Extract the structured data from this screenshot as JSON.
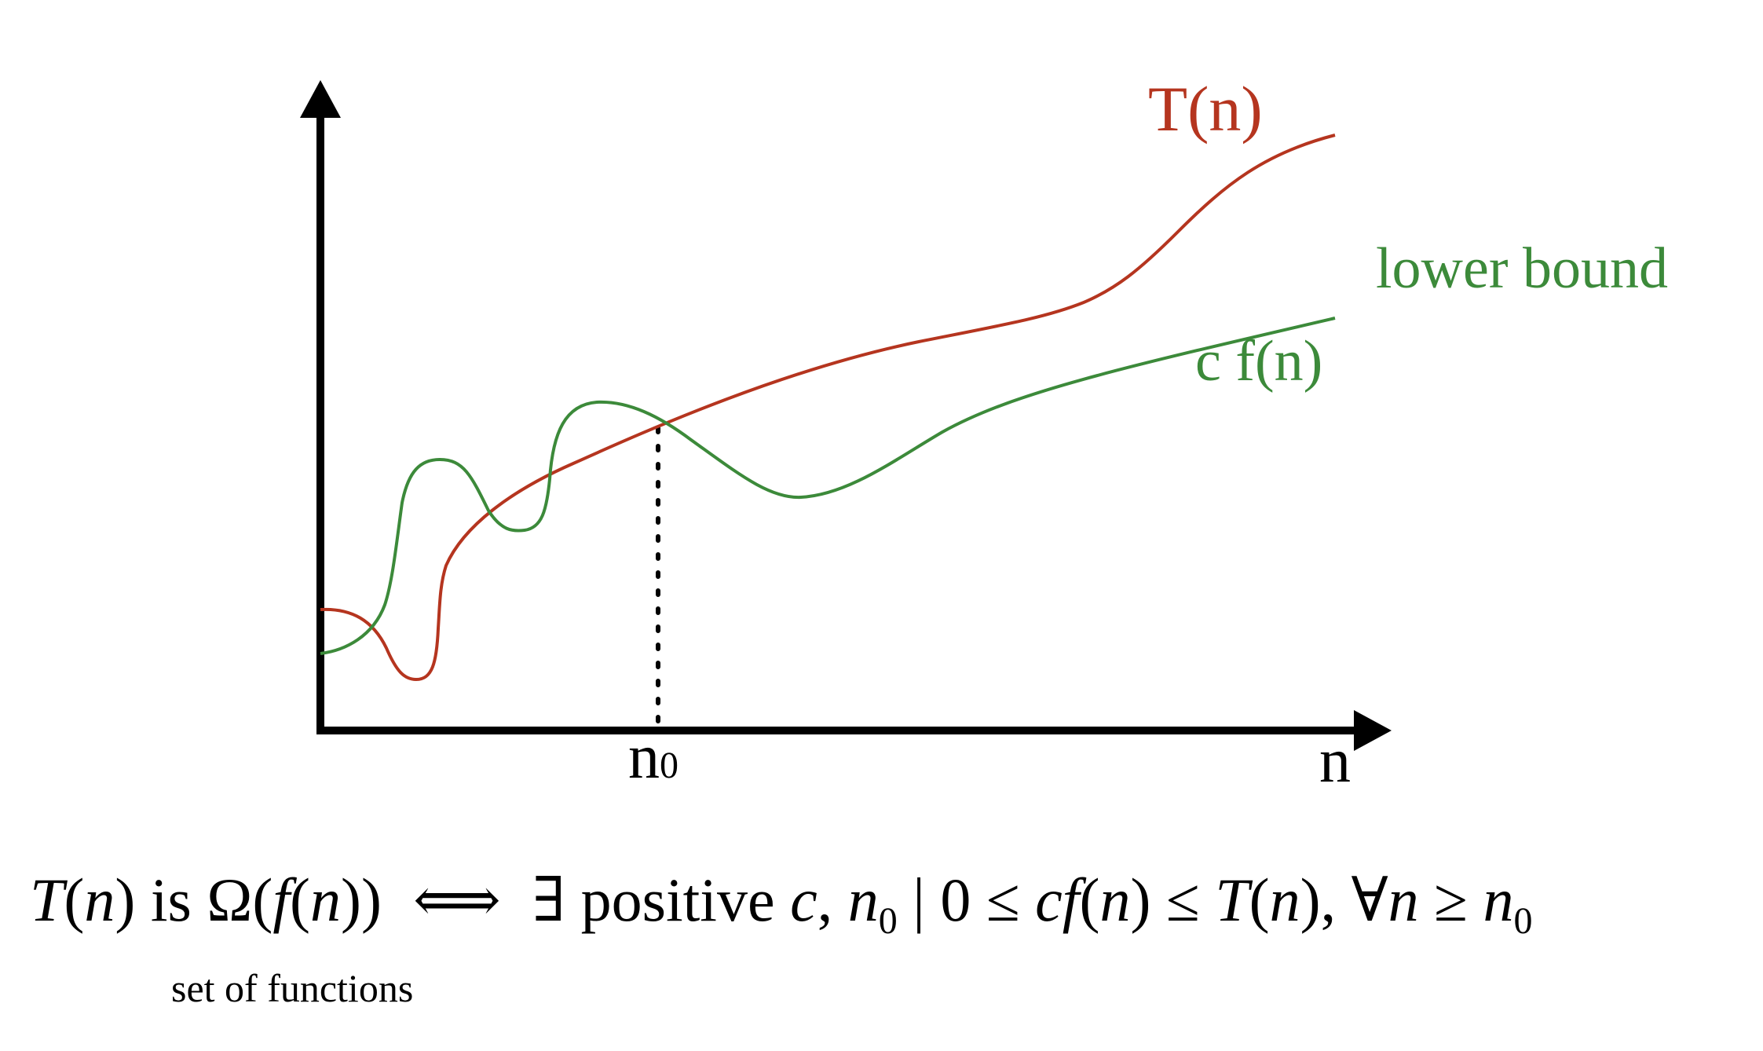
{
  "colors": {
    "t_curve": "#b5351f",
    "bound_curve": "#3c8a3a",
    "axes": "#000000"
  },
  "curves": {
    "t_label": "T(n)",
    "bound_title": "lower bound",
    "bound_label": "c f(n)"
  },
  "axes": {
    "x_label": "n",
    "marker_label": "n",
    "marker_subscript": "0"
  },
  "formula": {
    "lhs_T": "T",
    "lhs_n": "n",
    "is_word": " is ",
    "omega": "Ω",
    "f": "f",
    "n": "n",
    "iff": "⟺",
    "exists": "∃ positive ",
    "c": "c",
    "comma": ", ",
    "n0_sub": "0",
    "bar": " | 0 ≤ ",
    "le": " ≤ ",
    "forall": "∀",
    "ge": " ≥ "
  },
  "note": {
    "text": "set of functions"
  }
}
